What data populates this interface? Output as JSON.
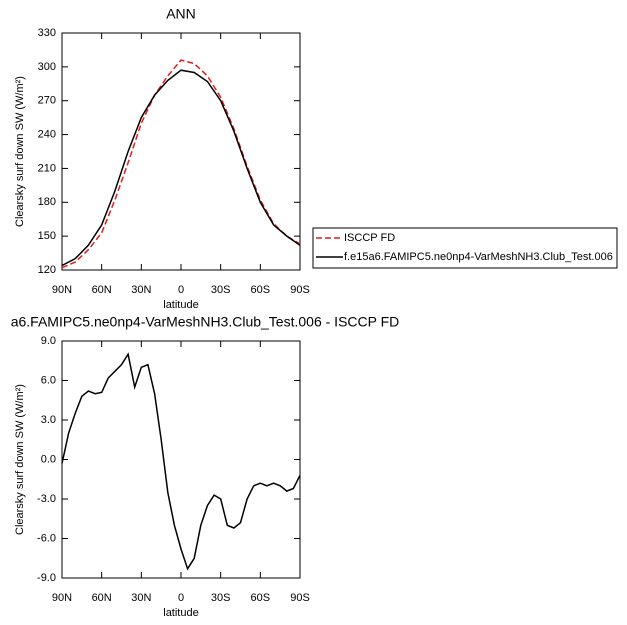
{
  "chart_data": [
    {
      "type": "line",
      "title": "ANN",
      "xlabel": "latitude",
      "ylabel": "Clearsky surf down SW (W/m²)",
      "x": [
        90,
        80,
        70,
        60,
        50,
        40,
        30,
        20,
        10,
        0,
        -10,
        -20,
        -30,
        -40,
        -50,
        -60,
        -70,
        -80,
        -90
      ],
      "xlim": [
        90,
        -90
      ],
      "xticks": [
        {
          "value": 90,
          "label": "90N"
        },
        {
          "value": 60,
          "label": "60N"
        },
        {
          "value": 30,
          "label": "30N"
        },
        0,
        {
          "value": -30,
          "label": "30S"
        },
        {
          "value": -60,
          "label": "60S"
        },
        {
          "value": -90,
          "label": "90S"
        }
      ],
      "ylim": [
        120,
        330
      ],
      "yticks": [
        120,
        150,
        180,
        210,
        240,
        270,
        300,
        330
      ],
      "series": [
        {
          "name": "ISCCP FD",
          "color": "#e41a1c",
          "dashed": true,
          "values": [
            122,
            127,
            138,
            153,
            182,
            215,
            250,
            275,
            292,
            306,
            303,
            292,
            273,
            245,
            212,
            182,
            161,
            150,
            143
          ]
        },
        {
          "name": "f.e15a6.FAMIPC5.ne0np4-VarMeshNH3.Club_Test.006",
          "color": "#000000",
          "dashed": false,
          "values": [
            124,
            130,
            142,
            160,
            190,
            225,
            255,
            275,
            288,
            297,
            295,
            287,
            270,
            243,
            210,
            180,
            160,
            150,
            142
          ]
        }
      ]
    },
    {
      "type": "line",
      "title": "a6.FAMIPC5.ne0np4-VarMeshNH3.Club_Test.006 - ISCCP FD",
      "xlabel": "latitude",
      "ylabel": "Clearsky surf down SW (W/m²)",
      "x": [
        90,
        85,
        80,
        75,
        70,
        65,
        60,
        55,
        50,
        45,
        40,
        35,
        30,
        25,
        20,
        15,
        10,
        5,
        0,
        -5,
        -10,
        -15,
        -20,
        -25,
        -30,
        -35,
        -40,
        -45,
        -50,
        -55,
        -60,
        -65,
        -70,
        -75,
        -80,
        -85,
        -90
      ],
      "xlim": [
        90,
        -90
      ],
      "xticks": [
        {
          "value": 90,
          "label": "90N"
        },
        {
          "value": 60,
          "label": "60N"
        },
        {
          "value": 30,
          "label": "30N"
        },
        0,
        {
          "value": -30,
          "label": "30S"
        },
        {
          "value": -60,
          "label": "60S"
        },
        {
          "value": -90,
          "label": "90S"
        }
      ],
      "ylim": [
        -9,
        9
      ],
      "yticks": [
        {
          "value": -9,
          "label": "-9.0"
        },
        {
          "value": -6,
          "label": "-6.0"
        },
        {
          "value": -3,
          "label": "-3.0"
        },
        {
          "value": 0,
          "label": "0.0"
        },
        {
          "value": 3,
          "label": "3.0"
        },
        {
          "value": 6,
          "label": "6.0"
        },
        {
          "value": 9,
          "label": "9.0"
        }
      ],
      "series": [
        {
          "color": "#000000",
          "dashed": false,
          "values": [
            -0.3,
            2.0,
            3.5,
            4.8,
            5.2,
            5.0,
            5.1,
            6.2,
            6.7,
            7.2,
            8.0,
            5.5,
            7.0,
            7.2,
            5.0,
            1.5,
            -2.5,
            -5.0,
            -6.8,
            -8.3,
            -7.5,
            -5.0,
            -3.5,
            -2.7,
            -3.0,
            -5.0,
            -5.2,
            -4.8,
            -3.0,
            -2.0,
            -1.8,
            -2.0,
            -1.8,
            -2.0,
            -2.4,
            -2.2,
            -1.2
          ]
        }
      ]
    }
  ]
}
